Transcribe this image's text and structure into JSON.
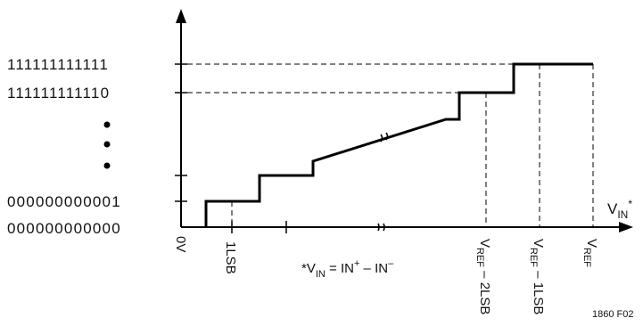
{
  "y_axis_codes": {
    "top": "111111111111",
    "second": "111111111110",
    "one": "000000000001",
    "zero": "000000000000"
  },
  "x_axis_title": {
    "main": "V",
    "sub": "IN",
    "sup": "*"
  },
  "x_ticks": {
    "zero": "0V",
    "lsb": "1LSB",
    "vref_2lsb": {
      "v": "V",
      "sub": "REF",
      "rest": " – 2LSB"
    },
    "vref_1lsb": {
      "v": "V",
      "sub": "REF",
      "rest": " – 1LSB"
    },
    "vref": {
      "v": "V",
      "sub": "REF"
    }
  },
  "footnote": {
    "prefix": "*V",
    "sub": "IN",
    "eq": " = IN",
    "plus": "+",
    "minus_text": " – IN",
    "minus": "–"
  },
  "figure_code": "1860 F02"
}
